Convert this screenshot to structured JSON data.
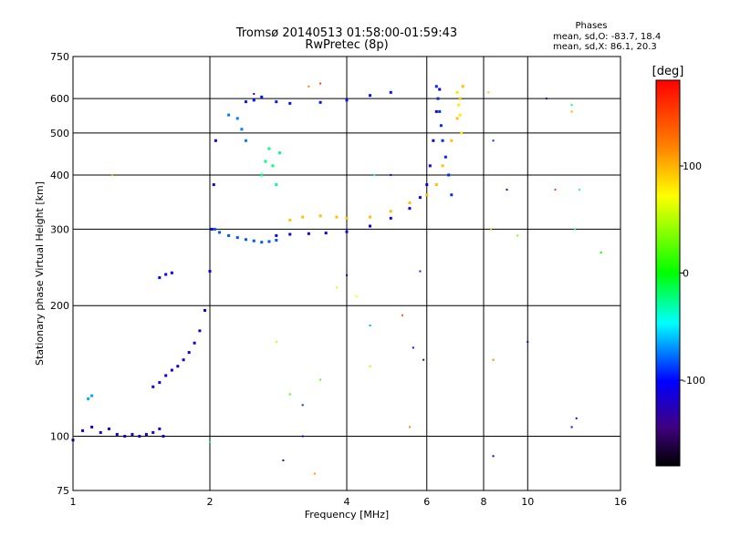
{
  "chart_data": {
    "type": "scatter",
    "title": "Tromsø 20140513 01:58:00-01:59:43",
    "subtitle": "RwPretec (8p)",
    "xlabel": "Frequency [MHz]",
    "ylabel": "Stationary phase Virtual Height [km]",
    "x_scale": "log",
    "y_scale": "log",
    "xlim": [
      1,
      16
    ],
    "ylim": [
      75,
      750
    ],
    "x_ticks": [
      1,
      2,
      4,
      6,
      8,
      10,
      16
    ],
    "x_ticks_labels": [
      "1",
      "2",
      "4",
      "6",
      "8",
      "10",
      "16"
    ],
    "y_ticks": [
      75,
      100,
      200,
      300,
      400,
      500,
      600,
      750
    ],
    "y_ticks_labels": [
      "75",
      "100",
      "200",
      "300",
      "400",
      "500",
      "600",
      "750"
    ],
    "grid": true,
    "phase_box": {
      "heading": "Phases",
      "line_o": "mean, sd,O: -83.7, 18.4",
      "line_x": "mean, sd,X:  86.1, 20.3"
    },
    "colorbar": {
      "label": "[deg]",
      "range": [
        -180,
        180
      ],
      "ticks": [
        100,
        0,
        -100
      ],
      "tick_labels": [
        "100",
        "0",
        "-100"
      ]
    },
    "traces": [
      {
        "points": [
          [
            1.0,
            98
          ],
          [
            1.05,
            103
          ],
          [
            1.1,
            105
          ],
          [
            1.15,
            102
          ],
          [
            1.2,
            104
          ],
          [
            1.25,
            101
          ],
          [
            1.3,
            100
          ],
          [
            1.35,
            101
          ],
          [
            1.4,
            100
          ],
          [
            1.45,
            101
          ],
          [
            1.5,
            102
          ],
          [
            1.55,
            104
          ],
          [
            1.58,
            100
          ]
        ],
        "phase": -110
      },
      {
        "points": [
          [
            1.08,
            122
          ],
          [
            1.1,
            124
          ]
        ],
        "phase": -60
      },
      {
        "points": [
          [
            1.5,
            130
          ],
          [
            1.55,
            133
          ],
          [
            1.6,
            138
          ],
          [
            1.65,
            142
          ],
          [
            1.7,
            145
          ],
          [
            1.75,
            150
          ],
          [
            1.8,
            156
          ],
          [
            1.85,
            164
          ],
          [
            1.9,
            175
          ],
          [
            1.95,
            195
          ],
          [
            2.0,
            240
          ],
          [
            2.02,
            300
          ],
          [
            2.04,
            380
          ],
          [
            2.06,
            480
          ]
        ],
        "phase": -110
      },
      {
        "points": [
          [
            1.55,
            232
          ],
          [
            1.6,
            236
          ],
          [
            1.65,
            238
          ]
        ],
        "phase": -100
      },
      {
        "points": [
          [
            2.05,
            300
          ],
          [
            2.1,
            295
          ],
          [
            2.2,
            290
          ],
          [
            2.3,
            287
          ],
          [
            2.4,
            284
          ],
          [
            2.5,
            282
          ],
          [
            2.6,
            280
          ],
          [
            2.7,
            281
          ],
          [
            2.8,
            283
          ]
        ],
        "phase": -80
      },
      {
        "points": [
          [
            2.8,
            290
          ],
          [
            3.0,
            292
          ],
          [
            3.3,
            293
          ],
          [
            3.6,
            294
          ],
          [
            4.0,
            296
          ],
          [
            4.5,
            305
          ],
          [
            5.0,
            318
          ],
          [
            5.5,
            335
          ],
          [
            5.8,
            355
          ],
          [
            6.0,
            380
          ],
          [
            6.1,
            420
          ],
          [
            6.2,
            480
          ],
          [
            6.3,
            560
          ],
          [
            6.4,
            630
          ]
        ],
        "phase": -110
      },
      {
        "points": [
          [
            3.0,
            315
          ],
          [
            3.2,
            320
          ],
          [
            3.5,
            322
          ],
          [
            3.8,
            320
          ],
          [
            4.0,
            318
          ],
          [
            4.5,
            320
          ],
          [
            5.0,
            330
          ],
          [
            5.5,
            345
          ],
          [
            6.0,
            360
          ],
          [
            6.3,
            380
          ],
          [
            6.5,
            420
          ],
          [
            6.8,
            480
          ],
          [
            7.0,
            540
          ],
          [
            7.1,
            600
          ],
          [
            7.2,
            640
          ]
        ],
        "phase": 110
      },
      {
        "points": [
          [
            2.4,
            590
          ],
          [
            2.5,
            595
          ],
          [
            2.6,
            605
          ],
          [
            2.8,
            590
          ],
          [
            3.0,
            585
          ],
          [
            3.5,
            588
          ],
          [
            4.0,
            595
          ],
          [
            4.5,
            610
          ],
          [
            5.0,
            620
          ]
        ],
        "phase": -95
      },
      {
        "points": [
          [
            2.6,
            400
          ],
          [
            2.65,
            430
          ],
          [
            2.7,
            460
          ],
          [
            2.75,
            420
          ],
          [
            2.8,
            380
          ],
          [
            2.85,
            450
          ]
        ],
        "phase": -20
      },
      {
        "points": [
          [
            2.2,
            550
          ],
          [
            2.3,
            540
          ],
          [
            2.35,
            510
          ],
          [
            2.4,
            480
          ]
        ],
        "phase": -70
      },
      {
        "points": [
          [
            6.3,
            640
          ],
          [
            6.35,
            600
          ],
          [
            6.4,
            560
          ],
          [
            6.45,
            520
          ],
          [
            6.5,
            480
          ],
          [
            6.6,
            440
          ],
          [
            6.7,
            400
          ],
          [
            6.8,
            360
          ]
        ],
        "phase": -90
      },
      {
        "points": [
          [
            7.0,
            620
          ],
          [
            7.05,
            580
          ],
          [
            7.1,
            550
          ],
          [
            7.15,
            500
          ]
        ],
        "phase": 90
      }
    ],
    "scatter": [
      {
        "x": 1.22,
        "y": 400,
        "phase": 120
      },
      {
        "x": 2.8,
        "y": 165,
        "phase": 60
      },
      {
        "x": 3.0,
        "y": 125,
        "phase": 20
      },
      {
        "x": 3.2,
        "y": 118,
        "phase": -90
      },
      {
        "x": 3.5,
        "y": 135,
        "phase": 30
      },
      {
        "x": 3.8,
        "y": 220,
        "phase": 90
      },
      {
        "x": 4.0,
        "y": 235,
        "phase": -120
      },
      {
        "x": 4.2,
        "y": 210,
        "phase": 80
      },
      {
        "x": 4.5,
        "y": 180,
        "phase": -60
      },
      {
        "x": 4.5,
        "y": 145,
        "phase": 100
      },
      {
        "x": 4.6,
        "y": 400,
        "phase": -40
      },
      {
        "x": 5.0,
        "y": 400,
        "phase": -100
      },
      {
        "x": 5.3,
        "y": 190,
        "phase": 150
      },
      {
        "x": 5.6,
        "y": 160,
        "phase": -110
      },
      {
        "x": 5.8,
        "y": 240,
        "phase": -90
      },
      {
        "x": 5.9,
        "y": 150,
        "phase": -140
      },
      {
        "x": 3.4,
        "y": 82,
        "phase": 130
      },
      {
        "x": 2.9,
        "y": 88,
        "phase": -140
      },
      {
        "x": 3.2,
        "y": 100,
        "phase": -100
      },
      {
        "x": 5.5,
        "y": 105,
        "phase": 140
      },
      {
        "x": 8.2,
        "y": 620,
        "phase": 110
      },
      {
        "x": 8.4,
        "y": 480,
        "phase": -90
      },
      {
        "x": 8.3,
        "y": 300,
        "phase": 120
      },
      {
        "x": 8.4,
        "y": 150,
        "phase": 140
      },
      {
        "x": 8.4,
        "y": 90,
        "phase": -100
      },
      {
        "x": 9.0,
        "y": 370,
        "phase": -110
      },
      {
        "x": 9.5,
        "y": 290,
        "phase": 40
      },
      {
        "x": 10.0,
        "y": 165,
        "phase": -120
      },
      {
        "x": 11.0,
        "y": 600,
        "phase": -100
      },
      {
        "x": 11.5,
        "y": 370,
        "phase": 160
      },
      {
        "x": 12.5,
        "y": 580,
        "phase": -20
      },
      {
        "x": 12.5,
        "y": 560,
        "phase": 120
      },
      {
        "x": 12.8,
        "y": 110,
        "phase": -120
      },
      {
        "x": 12.5,
        "y": 105,
        "phase": -110
      },
      {
        "x": 12.7,
        "y": 300,
        "phase": -20
      },
      {
        "x": 13.0,
        "y": 370,
        "phase": -40
      },
      {
        "x": 14.5,
        "y": 265,
        "phase": 0
      },
      {
        "x": 2.0,
        "y": 97,
        "phase": -20
      },
      {
        "x": 2.5,
        "y": 615,
        "phase": -120
      },
      {
        "x": 3.3,
        "y": 640,
        "phase": 140
      },
      {
        "x": 3.5,
        "y": 650,
        "phase": 160
      }
    ]
  }
}
